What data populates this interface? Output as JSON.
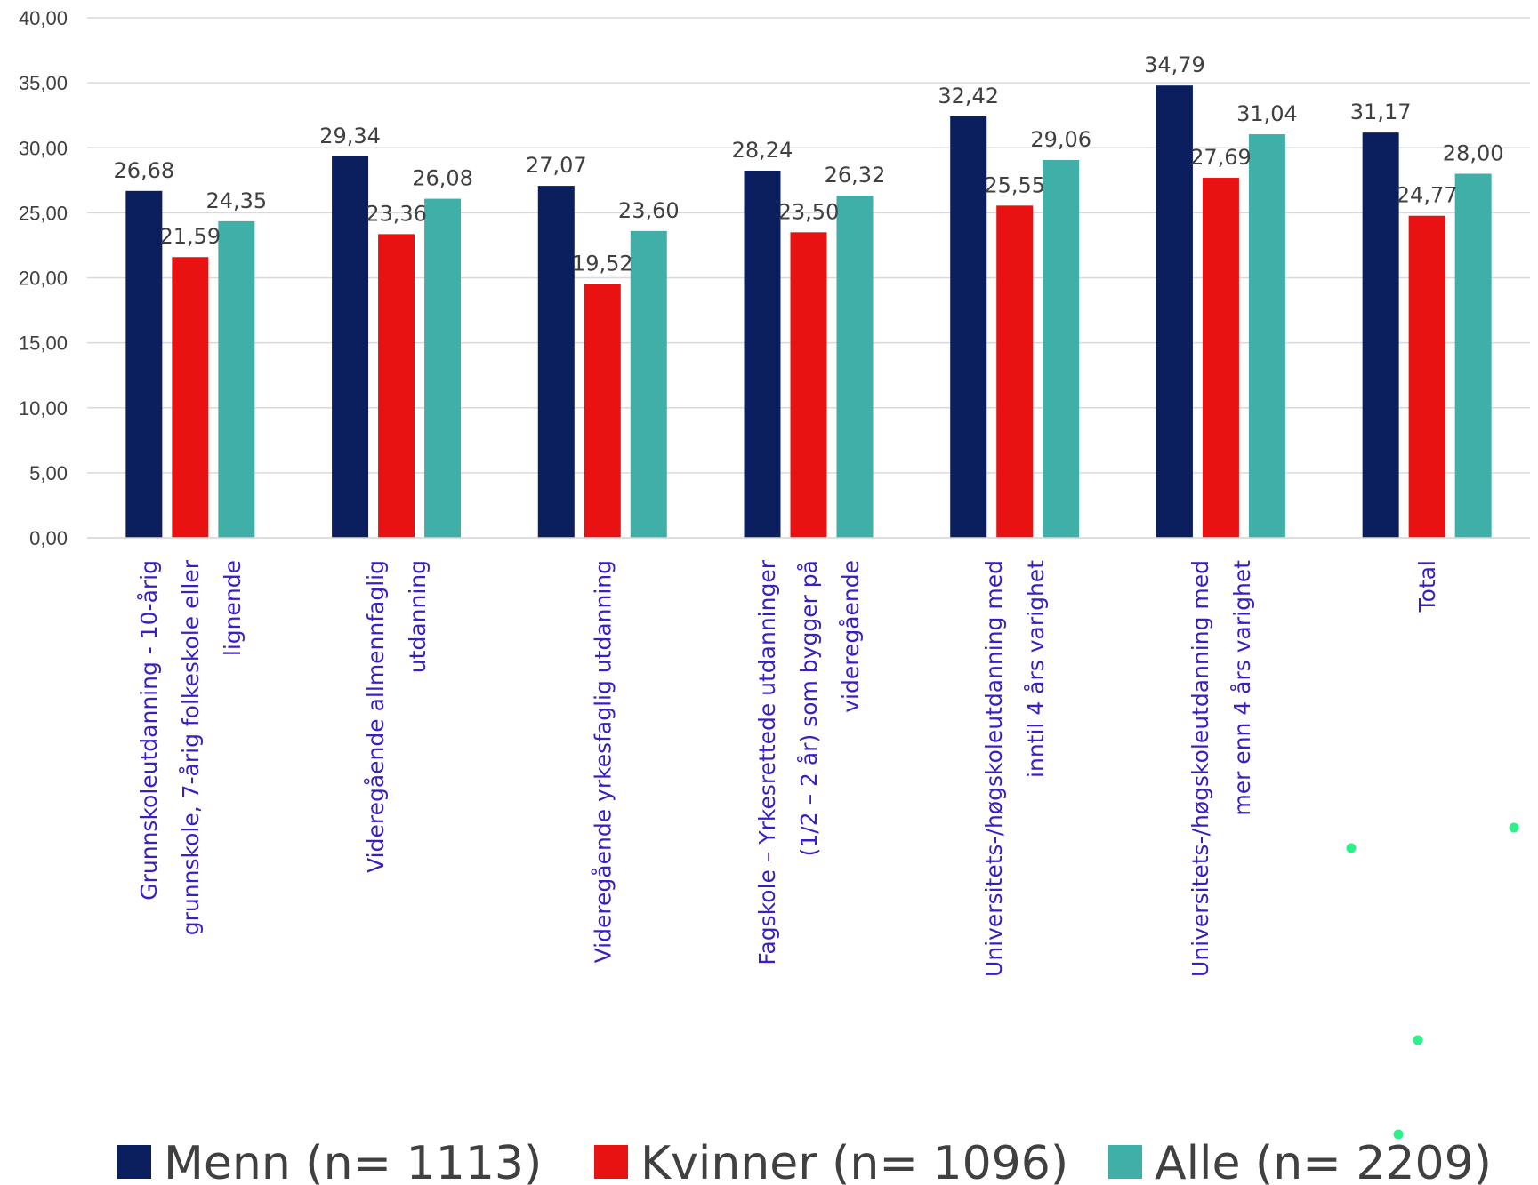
{
  "chart_data": {
    "type": "bar",
    "categories": [
      [
        "Grunnskoleutdanning - 10-årig",
        "grunnskole, 7-årig folkeskole eller",
        "lignende"
      ],
      [
        "Videregående allmennfaglig",
        "utdanning"
      ],
      [
        "Videregående yrkesfaglig utdanning"
      ],
      [
        "Fagskole – Yrkesrettede utdanninger",
        "(1/2 – 2 år) som bygger på",
        "videregående"
      ],
      [
        "Universitets-/høgskoleutdanning med",
        "inntil 4 års varighet"
      ],
      [
        "Universitets-/høgskoleutdanning med",
        "mer enn 4 års varighet"
      ],
      [
        "Total"
      ]
    ],
    "series": [
      {
        "name": "Menn (n= 1113)",
        "color": "#0b1f5e",
        "values": [
          26.68,
          29.34,
          27.07,
          28.24,
          32.42,
          34.79,
          31.17
        ]
      },
      {
        "name": "Kvinner (n= 1096)",
        "color": "#e81212",
        "values": [
          21.59,
          23.36,
          19.52,
          23.5,
          25.55,
          27.69,
          24.77
        ]
      },
      {
        "name": "Alle (n= 2209)",
        "color": "#40afa8",
        "values": [
          24.35,
          26.08,
          23.6,
          26.32,
          29.06,
          31.04,
          28.0
        ]
      }
    ],
    "data_labels": [
      [
        "26,68",
        "29,34",
        "27,07",
        "28,24",
        "32,42",
        "34,79",
        "31,17"
      ],
      [
        "21,59",
        "23,36",
        "19,52",
        "23,50",
        "25,55",
        "27,69",
        "24,77"
      ],
      [
        "24,35",
        "26,08",
        "23,60",
        "26,32",
        "29,06",
        "31,04",
        "28,00"
      ]
    ],
    "yticks": [
      "0,00",
      "5,00",
      "10,00",
      "15,00",
      "20,00",
      "25,00",
      "30,00",
      "35,00",
      "40,00"
    ],
    "ylim": [
      0,
      40
    ],
    "grid": true,
    "legend_position": "bottom",
    "title": "",
    "xlabel": "",
    "ylabel": ""
  },
  "colors": {
    "grid": "#d9d9d9",
    "category_label": "#3a1fc0",
    "text": "#404040",
    "stray_dots": "#2ef08a"
  }
}
